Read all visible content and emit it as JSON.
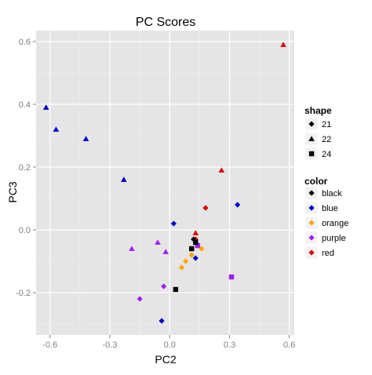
{
  "chart_data": {
    "type": "scatter",
    "title": "PC Scores",
    "xlabel": "PC2",
    "ylabel": "PC3",
    "xlim": [
      -0.67,
      0.625
    ],
    "ylim": [
      -0.335,
      0.635
    ],
    "xticks": [
      -0.6,
      -0.3,
      0.0,
      0.3,
      0.6
    ],
    "xtick_labels": [
      "-0.6",
      "-0.3",
      "0.0",
      "0.3",
      "0.6"
    ],
    "yticks": [
      -0.2,
      0.0,
      0.2,
      0.4,
      0.6
    ],
    "ytick_labels": [
      "-0.2",
      "0.0",
      "0.2",
      "0.4",
      "0.6"
    ],
    "grid": true,
    "panel_background": "#e5e5e5",
    "legend_position": "right",
    "shape_legend": {
      "title": "shape",
      "entries": [
        {
          "label": "21",
          "symbol": "diamond"
        },
        {
          "label": "22",
          "symbol": "triangle"
        },
        {
          "label": "24",
          "symbol": "square"
        }
      ]
    },
    "color_legend": {
      "title": "color",
      "entries": [
        {
          "label": "black",
          "color": "#000000"
        },
        {
          "label": "blue",
          "color": "#0000cc"
        },
        {
          "label": "orange",
          "color": "#ffa500"
        },
        {
          "label": "purple",
          "color": "#a020f0"
        },
        {
          "label": "red",
          "color": "#dd0000"
        }
      ]
    },
    "points": [
      {
        "x": 0.57,
        "y": 0.59,
        "shape": "22",
        "color": "red"
      },
      {
        "x": 0.26,
        "y": 0.19,
        "shape": "22",
        "color": "red"
      },
      {
        "x": 0.13,
        "y": -0.01,
        "shape": "22",
        "color": "red"
      },
      {
        "x": 0.18,
        "y": 0.07,
        "shape": "21",
        "color": "red"
      },
      {
        "x": 0.13,
        "y": -0.03,
        "shape": "21",
        "color": "red"
      },
      {
        "x": -0.62,
        "y": 0.39,
        "shape": "22",
        "color": "blue"
      },
      {
        "x": -0.57,
        "y": 0.32,
        "shape": "22",
        "color": "blue"
      },
      {
        "x": -0.42,
        "y": 0.29,
        "shape": "22",
        "color": "blue"
      },
      {
        "x": -0.23,
        "y": 0.16,
        "shape": "22",
        "color": "blue"
      },
      {
        "x": 0.02,
        "y": 0.02,
        "shape": "21",
        "color": "blue"
      },
      {
        "x": 0.34,
        "y": 0.08,
        "shape": "21",
        "color": "blue"
      },
      {
        "x": 0.13,
        "y": -0.09,
        "shape": "21",
        "color": "blue"
      },
      {
        "x": -0.04,
        "y": -0.29,
        "shape": "21",
        "color": "blue"
      },
      {
        "x": -0.19,
        "y": -0.06,
        "shape": "22",
        "color": "purple"
      },
      {
        "x": -0.06,
        "y": -0.04,
        "shape": "22",
        "color": "purple"
      },
      {
        "x": -0.02,
        "y": -0.07,
        "shape": "22",
        "color": "purple"
      },
      {
        "x": -0.15,
        "y": -0.22,
        "shape": "21",
        "color": "purple"
      },
      {
        "x": -0.03,
        "y": -0.18,
        "shape": "21",
        "color": "purple"
      },
      {
        "x": 0.14,
        "y": -0.05,
        "shape": "24",
        "color": "purple"
      },
      {
        "x": 0.31,
        "y": -0.15,
        "shape": "24",
        "color": "purple"
      },
      {
        "x": 0.06,
        "y": -0.12,
        "shape": "21",
        "color": "orange"
      },
      {
        "x": 0.08,
        "y": -0.1,
        "shape": "21",
        "color": "orange"
      },
      {
        "x": 0.11,
        "y": -0.08,
        "shape": "21",
        "color": "orange"
      },
      {
        "x": 0.16,
        "y": -0.06,
        "shape": "21",
        "color": "orange"
      },
      {
        "x": 0.12,
        "y": -0.03,
        "shape": "21",
        "color": "black"
      },
      {
        "x": 0.13,
        "y": -0.04,
        "shape": "24",
        "color": "black"
      },
      {
        "x": 0.11,
        "y": -0.06,
        "shape": "24",
        "color": "black"
      },
      {
        "x": 0.03,
        "y": -0.19,
        "shape": "24",
        "color": "black"
      }
    ]
  }
}
